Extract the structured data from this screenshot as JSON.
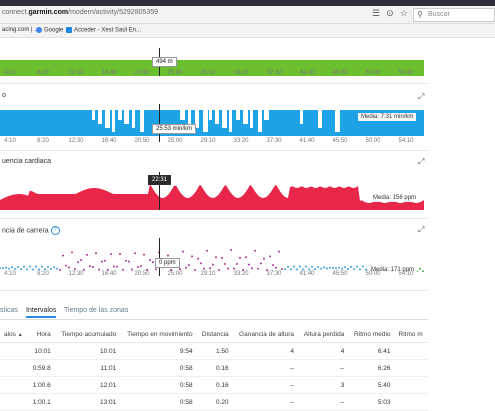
{
  "browser": {
    "url_prefix": "connect.",
    "url_domain": "garmin.com",
    "url_path": "/modern/activity/5292805359",
    "search_placeholder": "Buscar",
    "bookmarks": [
      "acing.com | ...",
      "Google",
      "Acceder - Xest Saúl En..."
    ]
  },
  "colors": {
    "elevation": "#6cbf2f",
    "pace": "#1fa3e6",
    "heart_rate": "#e8264a",
    "cadence_purple": "#b3309c",
    "cadence_blue": "#3da0e0",
    "cadence_green": "#4caf50"
  },
  "elevation_panel": {
    "tooltip": "494 m"
  },
  "axis_ticks": [
    "4:10",
    "8:20",
    "12:30",
    "16:40",
    "20:50",
    "25:00",
    "29:10",
    "33:20",
    "37:30",
    "41:40",
    "45:50",
    "50:00",
    "54:10"
  ],
  "pace_panel": {
    "title": "o",
    "tooltip": "25:53 min/km",
    "media": "Media: 7:31 min/km"
  },
  "hr_panel": {
    "title": "uencia cardiaca",
    "tooltip": "22:31",
    "media": "Media: 156 ppm"
  },
  "cadence_panel": {
    "title": "ncia de carrera",
    "tooltip": "0 ppm",
    "media": "Media: 171 ppm",
    "axis_ticks": [
      "4:10",
      "8:20",
      "12:30",
      "16:40",
      "20:50",
      "25:00",
      "29:10",
      "33:20",
      "37:30",
      "41:40",
      "45:50",
      "50:00",
      "54:10"
    ]
  },
  "tabs": {
    "items": [
      "sticas",
      "Intervalos",
      "Tiempo de las zonas"
    ],
    "active": "Intervalos"
  },
  "table": {
    "columns": [
      "alos",
      "Hora",
      "Tiempo acumulado",
      "Tiempo en movimiento",
      "Distancia",
      "Ganancia de altura",
      "Altura perdida",
      "Ritmo medio",
      "Ritmo m"
    ],
    "rows": [
      [
        "",
        "10:01",
        "10:01",
        "9:54",
        "1.50",
        "4",
        "4",
        "6:41",
        ""
      ],
      [
        "",
        "0:59.8",
        "11:01",
        "0:58",
        "0.16",
        "--",
        "--",
        "6:26",
        ""
      ],
      [
        "",
        "1:00.6",
        "12:01",
        "0:58",
        "0.16",
        "--",
        "3",
        "5:40",
        ""
      ],
      [
        "",
        "1:00.1",
        "13:01",
        "0:58",
        "0.20",
        "--",
        "--",
        "5:03",
        ""
      ]
    ]
  }
}
